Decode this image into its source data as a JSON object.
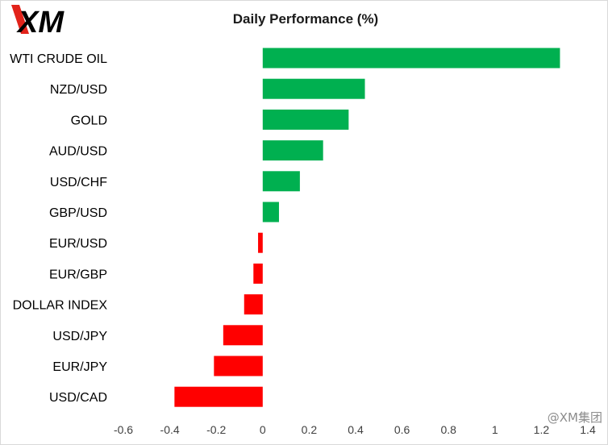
{
  "logo": {
    "text": "XM",
    "accent_color": "#e2231a"
  },
  "watermark": {
    "text": "@XM集团"
  },
  "colors": {
    "positive": "#00b050",
    "negative": "#ff0000"
  },
  "chart_data": {
    "type": "bar",
    "orientation": "horizontal",
    "title": "Daily Performance  (%)",
    "xlabel": "",
    "ylabel": "",
    "xlim": [
      -0.6,
      1.4
    ],
    "xticks": [
      -0.6,
      -0.4,
      -0.2,
      0,
      0.2,
      0.4,
      0.6,
      0.8,
      1,
      1.2,
      1.4
    ],
    "xtick_labels": [
      "-0.6",
      "-0.4",
      "-0.2",
      "0",
      "0.2",
      "0.4",
      "0.6",
      "0.8",
      "1",
      "1.2",
      "1.4"
    ],
    "categories": [
      "WTI CRUDE OIL",
      "NZD/USD",
      "GOLD",
      "AUD/USD",
      "USD/CHF",
      "GBP/USD",
      "EUR/USD",
      "EUR/GBP",
      "DOLLAR INDEX",
      "USD/JPY",
      "EUR/JPY",
      "USD/CAD"
    ],
    "values": [
      1.28,
      0.44,
      0.37,
      0.26,
      0.16,
      0.07,
      -0.02,
      -0.04,
      -0.08,
      -0.17,
      -0.21,
      -0.38
    ],
    "grid": false,
    "legend": "none"
  }
}
